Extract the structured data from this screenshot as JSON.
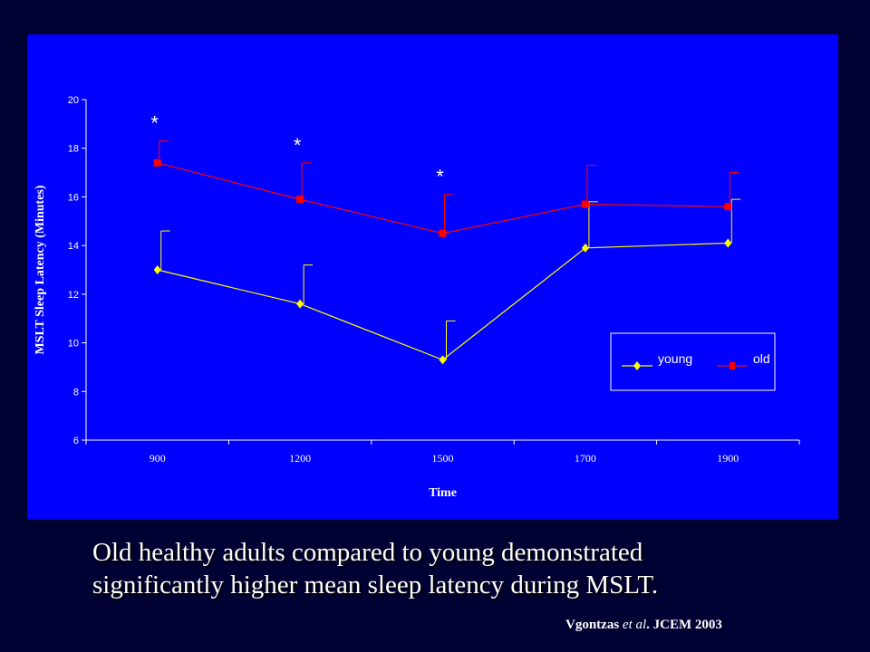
{
  "chart_data": {
    "type": "line",
    "title": "",
    "xlabel": "Time",
    "ylabel": "MSLT Sleep Latency (Minutes)",
    "categories": [
      "900",
      "1200",
      "1500",
      "1700",
      "1900"
    ],
    "ylim": [
      6,
      20
    ],
    "yticks": [
      "6",
      "8",
      "10",
      "12",
      "14",
      "16",
      "18",
      "20"
    ],
    "grid": false,
    "legend_position": "bottom-right",
    "series": [
      {
        "name": "young",
        "color": "#ffff00",
        "marker": "diamond",
        "values": [
          13.0,
          11.6,
          9.3,
          13.9,
          14.1
        ],
        "error_upper": [
          14.6,
          13.2,
          10.9,
          15.8,
          15.9
        ]
      },
      {
        "name": "old",
        "color": "#ff0000",
        "marker": "square",
        "values": [
          17.4,
          15.9,
          14.5,
          15.7,
          15.6
        ],
        "error_upper": [
          18.3,
          17.4,
          16.1,
          17.3,
          17.0
        ]
      }
    ],
    "significance_marker": "*",
    "significant_categories": [
      "900",
      "1200",
      "1500"
    ]
  },
  "caption": {
    "line1": "Old healthy adults compared to young demonstrated",
    "line2": "significantly higher mean sleep latency during MSLT."
  },
  "citation": {
    "author": "Vgontzas",
    "etal": "et al",
    "rest": ". JCEM 2003"
  }
}
